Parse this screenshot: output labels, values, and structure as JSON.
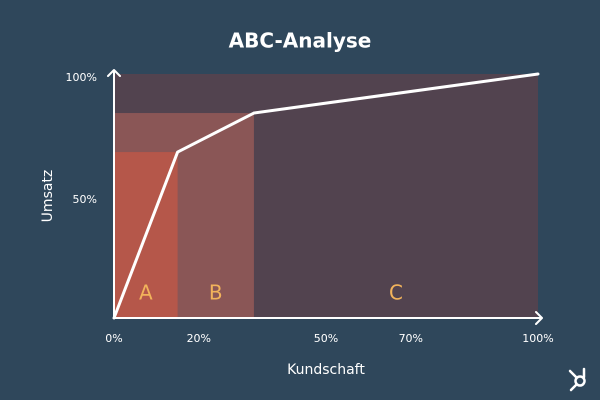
{
  "chart_data": {
    "type": "line",
    "title": "ABC-Analyse",
    "x_label": "Kundschaft",
    "y_label": "Umsatz",
    "x": [
      0,
      15,
      33,
      100
    ],
    "values": [
      0,
      68,
      84,
      100
    ],
    "color": "#ffffff",
    "xlim": [
      0,
      100
    ],
    "ylim": [
      0,
      100
    ],
    "xticks": [
      {
        "value": 0,
        "label": "0%"
      },
      {
        "value": 20,
        "label": "20%"
      },
      {
        "value": 50,
        "label": "50%"
      },
      {
        "value": 70,
        "label": "70%"
      },
      {
        "value": 100,
        "label": "100%"
      }
    ],
    "yticks": [
      {
        "value": 50,
        "label": "50%"
      },
      {
        "value": 100,
        "label": "100%"
      }
    ],
    "regions": [
      {
        "name": "A",
        "x": [
          0,
          15
        ],
        "top": 68,
        "color": "#b5574a"
      },
      {
        "name": "B",
        "x": [
          0,
          33
        ],
        "top": 84,
        "color": "#8a5656"
      },
      {
        "name": "C",
        "x": [
          0,
          100
        ],
        "top": 100,
        "color": "#52434f"
      }
    ],
    "region_label_color": "#f2b35b"
  }
}
